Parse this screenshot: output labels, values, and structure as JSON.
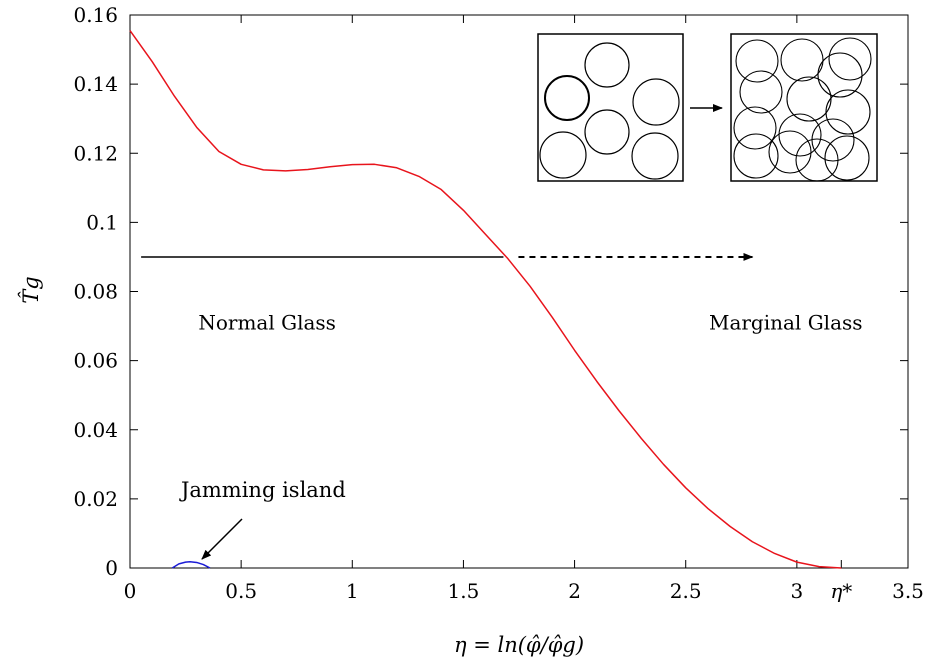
{
  "chart_data": {
    "type": "line",
    "xlabel": "η = ln(φ̂/φ̂g)",
    "ylabel": "T̂g",
    "xlim": [
      0,
      3.5
    ],
    "ylim": [
      0,
      0.16
    ],
    "x_ticks": [
      "0",
      "0.5",
      "1",
      "1.5",
      "2",
      "2.5",
      "3",
      "3.5"
    ],
    "y_ticks": [
      "0",
      "0.02",
      "0.04",
      "0.06",
      "0.08",
      "0.1",
      "0.12",
      "0.14",
      "0.16"
    ],
    "special_tick": {
      "label": "η*",
      "x": 3.2
    },
    "grid": false,
    "series": [
      {
        "color": "#e8141c",
        "x": [
          0,
          0.1,
          0.2,
          0.3,
          0.4,
          0.5,
          0.6,
          0.7,
          0.8,
          0.9,
          1.0,
          1.1,
          1.2,
          1.3,
          1.4,
          1.5,
          1.6,
          1.7,
          1.8,
          1.9,
          2.0,
          2.1,
          2.2,
          2.3,
          2.4,
          2.5,
          2.6,
          2.7,
          2.8,
          2.9,
          3.0,
          3.1,
          3.2
        ],
        "values": [
          0.1555,
          0.1465,
          0.1365,
          0.1275,
          0.1205,
          0.1168,
          0.1152,
          0.1149,
          0.1153,
          0.1161,
          0.1167,
          0.1168,
          0.1158,
          0.1133,
          0.1095,
          0.1035,
          0.0965,
          0.0895,
          0.0815,
          0.0725,
          0.063,
          0.054,
          0.0455,
          0.0375,
          0.03,
          0.0232,
          0.0172,
          0.012,
          0.0076,
          0.0042,
          0.0017,
          0.0004,
          0.0
        ]
      },
      {
        "color": "#1c1cd6",
        "x": [
          0.19,
          0.22,
          0.25,
          0.27,
          0.3,
          0.33,
          0.36
        ],
        "values": [
          0.0,
          0.0012,
          0.0017,
          0.0018,
          0.0016,
          0.001,
          0.0
        ]
      }
    ],
    "annotations": {
      "normal_glass": {
        "text": "Normal Glass",
        "x": 0.5,
        "y": 0.071
      },
      "marginal_glass": {
        "text": "Marginal Glass",
        "x": 2.95,
        "y": 0.071
      },
      "jamming_island": {
        "text": "Jamming island",
        "x": 0.6,
        "y": 0.02
      },
      "transition_arrow": {
        "y": 0.09,
        "x_start": 0.05,
        "x_solid_end": 1.68,
        "x_end": 2.8
      }
    },
    "inset": {
      "left_box_circles": 6,
      "right_box_circles": 14
    }
  }
}
